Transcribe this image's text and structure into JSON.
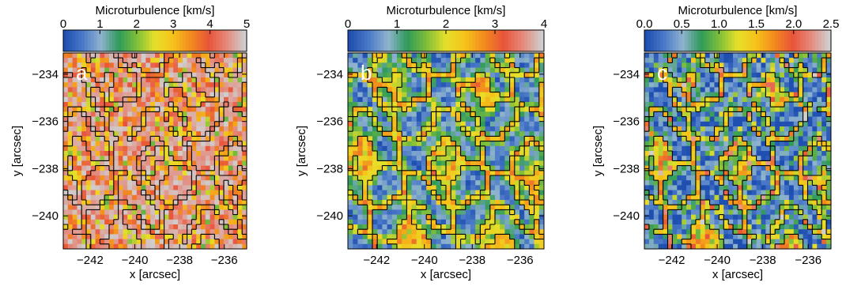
{
  "colors": {
    "colormap": [
      "#1f4fb0",
      "#4a79c8",
      "#8fb3cf",
      "#2e9a5a",
      "#7fbf3a",
      "#e6e02a",
      "#f6c21a",
      "#f28a1e",
      "#e8543a",
      "#e58a7c",
      "#cfcfcf"
    ],
    "contour": "#000000"
  },
  "chart_data": [
    {
      "type": "heatmap",
      "panel_label": "a",
      "colorbar": {
        "label": "Microturbulence [km/s]",
        "range": [
          0,
          5
        ],
        "ticks": [
          "0",
          "1",
          "2",
          "3",
          "4",
          "5"
        ]
      },
      "xlabel": "x [arcsec]",
      "ylabel": "y [arcsec]",
      "xlim": [
        -243.2,
        -235.0
      ],
      "ylim": [
        -241.4,
        -233.1
      ],
      "xticks": [
        -242,
        -240,
        -238,
        -236
      ],
      "yticks": [
        -234,
        -236,
        -238,
        -240
      ],
      "xtick_labels": [
        "−242",
        "−240",
        "−238",
        "−236"
      ],
      "ytick_labels": [
        "−234",
        "−236",
        "−238",
        "−240"
      ],
      "grid_cells": [
        40,
        40
      ],
      "typical_level": "high, mostly 3–5 km/s",
      "contours": true
    },
    {
      "type": "heatmap",
      "panel_label": "b",
      "colorbar": {
        "label": "Microturbulence [km/s]",
        "range": [
          0,
          4
        ],
        "ticks": [
          "0",
          "1",
          "2",
          "3",
          "4"
        ]
      },
      "xlabel": "x [arcsec]",
      "ylabel": "y [arcsec]",
      "xlim": [
        -243.2,
        -235.0
      ],
      "ylim": [
        -241.4,
        -233.1
      ],
      "xticks": [
        -242,
        -240,
        -238,
        -236
      ],
      "yticks": [
        -234,
        -236,
        -238,
        -240
      ],
      "xtick_labels": [
        "−242",
        "−240",
        "−238",
        "−236"
      ],
      "ytick_labels": [
        "−234",
        "−236",
        "−238",
        "−240"
      ],
      "grid_cells": [
        40,
        40
      ],
      "typical_level": "low in cell interiors, 2–3 km/s in lanes",
      "contours": true
    },
    {
      "type": "heatmap",
      "panel_label": "c",
      "colorbar": {
        "label": "Microturbulence [km/s]",
        "range": [
          0,
          2.5
        ],
        "ticks": [
          "0.0",
          "0.5",
          "1.0",
          "1.5",
          "2.0",
          "2.5"
        ]
      },
      "xlabel": "x [arcsec]",
      "ylabel": "y [arcsec]",
      "xlim": [
        -243.2,
        -235.0
      ],
      "ylim": [
        -241.4,
        -233.1
      ],
      "xticks": [
        -242,
        -240,
        -238,
        -236
      ],
      "yticks": [
        -234,
        -236,
        -238,
        -240
      ],
      "xtick_labels": [
        "−242",
        "−240",
        "−238",
        "−236"
      ],
      "ytick_labels": [
        "−234",
        "−236",
        "−238",
        "−240"
      ],
      "grid_cells": [
        40,
        40
      ],
      "typical_level": "mostly below 0.5 km/s with lane values up to 2.5 km/s",
      "contours": true
    }
  ]
}
